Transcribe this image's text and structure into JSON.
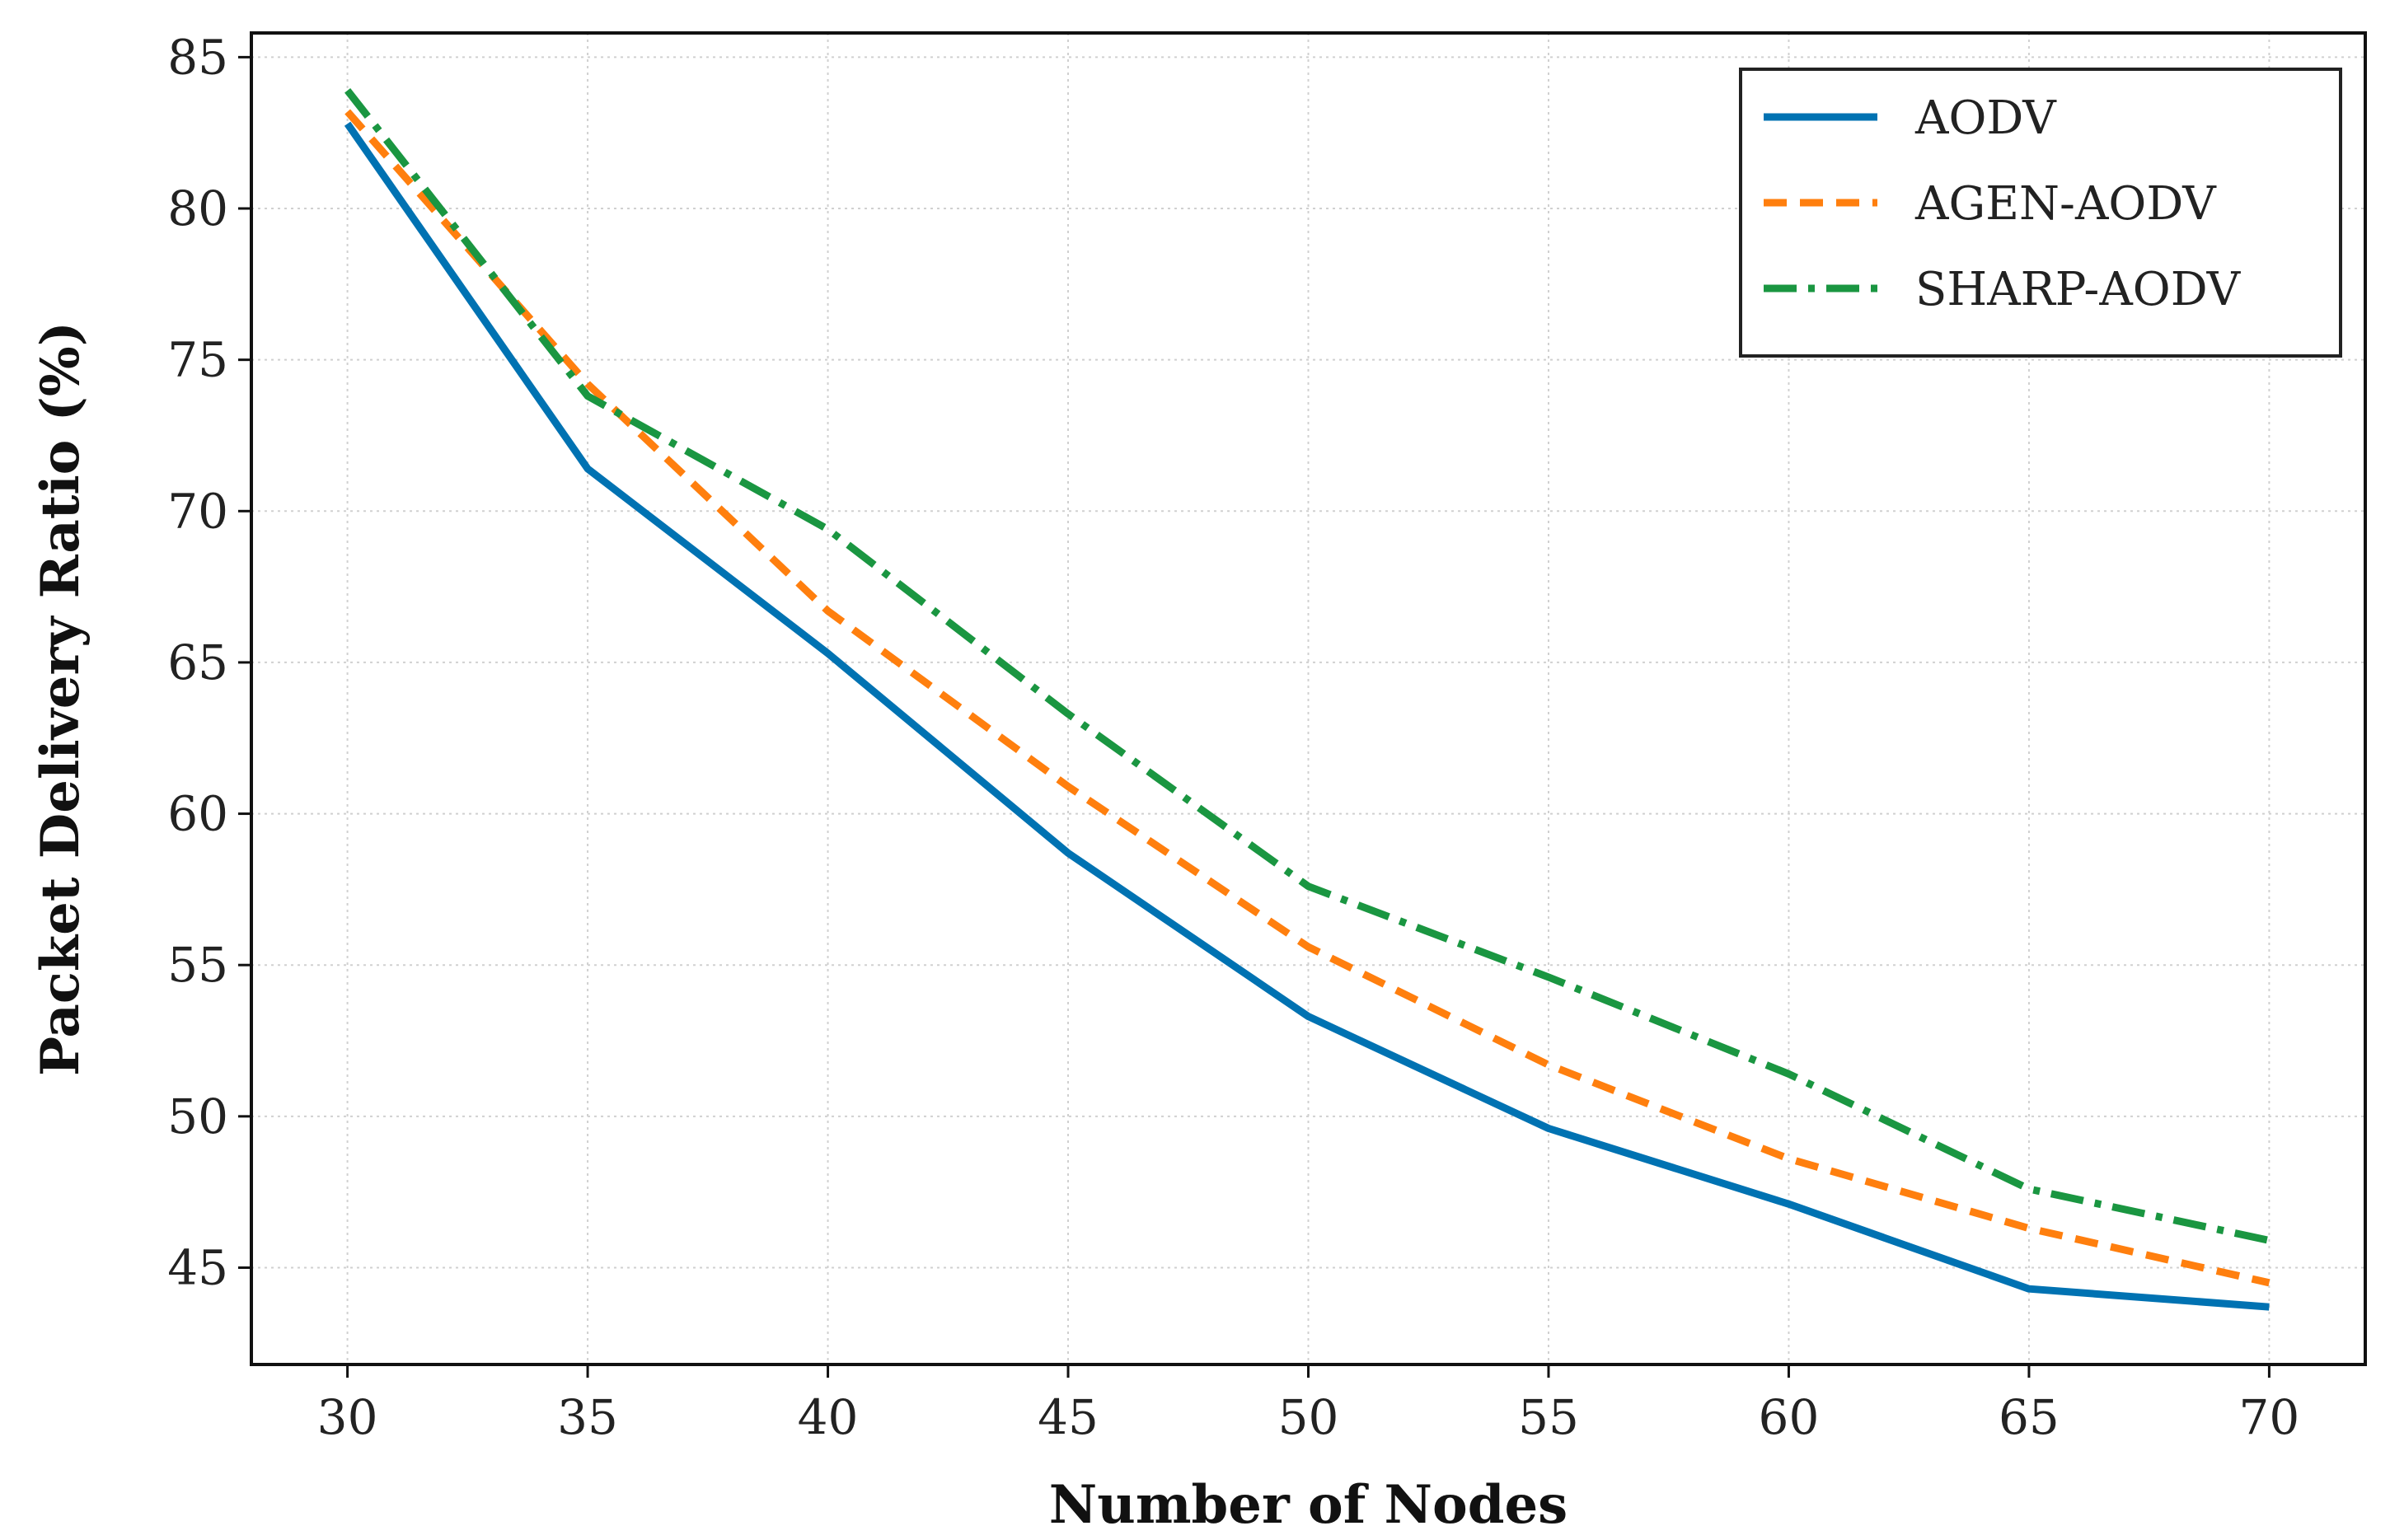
{
  "chart_data": {
    "type": "line",
    "title": "",
    "xlabel": "Number of Nodes",
    "ylabel": "Packet Delivery Ratio (%)",
    "x": [
      30,
      35,
      40,
      45,
      50,
      55,
      60,
      65,
      70
    ],
    "xlim": [
      28,
      72
    ],
    "ylim": [
      41.8,
      85.8
    ],
    "xticks": [
      30,
      35,
      40,
      45,
      50,
      55,
      60,
      65,
      70
    ],
    "yticks": [
      45,
      50,
      55,
      60,
      65,
      70,
      75,
      80,
      85
    ],
    "grid": true,
    "legend_position": "top-right",
    "series": [
      {
        "name": "AODV",
        "color": "#0072B2",
        "dash": "solid",
        "values": [
          82.8,
          71.4,
          65.3,
          58.7,
          53.3,
          49.6,
          47.1,
          44.3,
          43.7
        ]
      },
      {
        "name": "AGEN-AODV",
        "color": "#FF7F0E",
        "dash": "dashed",
        "values": [
          83.2,
          74.2,
          66.7,
          60.9,
          55.6,
          51.7,
          48.6,
          46.3,
          44.5
        ]
      },
      {
        "name": "SHARP-AODV",
        "color": "#1A9641",
        "dash": "dashdot",
        "values": [
          83.9,
          73.8,
          69.4,
          63.3,
          57.6,
          54.6,
          51.4,
          47.6,
          45.9
        ]
      }
    ]
  }
}
